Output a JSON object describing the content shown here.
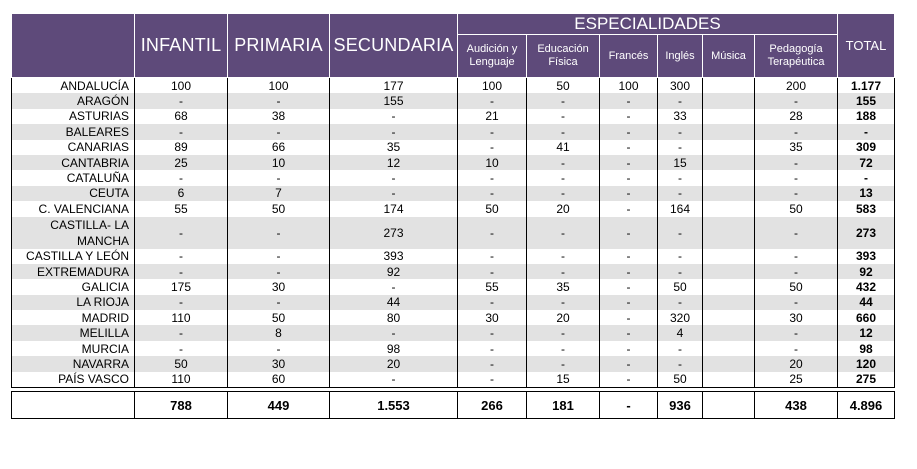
{
  "headers": {
    "region": "",
    "infantil": "INFANTIL",
    "primaria": "PRIMARIA",
    "secundaria": "SECUNDARIA",
    "especialidades": "ESPECIALIDADES",
    "total": "TOTAL",
    "sub": [
      "Audición y Lenguaje",
      "Educación Física",
      "Francés",
      "Inglés",
      "Música",
      "Pedagogía Terapéutica"
    ]
  },
  "rows": [
    {
      "name": "ANDALUCÍA",
      "cells": [
        "100",
        "100",
        "177",
        "100",
        "50",
        "100",
        "300",
        "",
        "200",
        "1.177"
      ]
    },
    {
      "name": "ARAGÓN",
      "cells": [
        "-",
        "-",
        "155",
        "-",
        "-",
        "-",
        "-",
        "",
        "-",
        "155"
      ]
    },
    {
      "name": "ASTURIAS",
      "cells": [
        "68",
        "38",
        "-",
        "21",
        "-",
        "-",
        "33",
        "",
        "28",
        "188"
      ]
    },
    {
      "name": "BALEARES",
      "cells": [
        "-",
        "-",
        "-",
        "-",
        "-",
        "-",
        "-",
        "",
        "-",
        "-"
      ]
    },
    {
      "name": "CANARIAS",
      "cells": [
        "89",
        "66",
        "35",
        "-",
        "41",
        "-",
        "-",
        "",
        "35",
        "309"
      ]
    },
    {
      "name": "CANTABRIA",
      "cells": [
        "25",
        "10",
        "12",
        "10",
        "-",
        "-",
        "15",
        "",
        "-",
        "72"
      ]
    },
    {
      "name": "CATALUÑA",
      "cells": [
        "-",
        "-",
        "-",
        "-",
        "-",
        "-",
        "-",
        "",
        "-",
        "-"
      ]
    },
    {
      "name": "CEUTA",
      "cells": [
        "6",
        "7",
        "-",
        "-",
        "-",
        "-",
        "-",
        "",
        "-",
        "13"
      ]
    },
    {
      "name": "C. VALENCIANA",
      "cells": [
        "55",
        "50",
        "174",
        "50",
        "20",
        "-",
        "164",
        "",
        "50",
        "583"
      ]
    },
    {
      "name": "CASTILLA- LA MANCHA",
      "cells": [
        "-",
        "-",
        "273",
        "-",
        "-",
        "-",
        "-",
        "",
        "-",
        "273"
      ]
    },
    {
      "name": "CASTILLA Y LEÓN",
      "cells": [
        "-",
        "-",
        "393",
        "-",
        "-",
        "-",
        "-",
        "",
        "-",
        "393"
      ]
    },
    {
      "name": "EXTREMADURA",
      "cells": [
        "-",
        "-",
        "92",
        "-",
        "-",
        "-",
        "-",
        "",
        "-",
        "92"
      ]
    },
    {
      "name": "GALICIA",
      "cells": [
        "175",
        "30",
        "-",
        "55",
        "35",
        "-",
        "50",
        "",
        "50",
        "432"
      ]
    },
    {
      "name": "LA RIOJA",
      "cells": [
        "-",
        "-",
        "44",
        "-",
        "-",
        "-",
        "-",
        "",
        "-",
        "44"
      ]
    },
    {
      "name": "MADRID",
      "cells": [
        "110",
        "50",
        "80",
        "30",
        "20",
        "-",
        "320",
        "",
        "30",
        "660"
      ]
    },
    {
      "name": "MELILLA",
      "cells": [
        "-",
        "8",
        "-",
        "-",
        "-",
        "-",
        "4",
        "",
        "-",
        "12"
      ]
    },
    {
      "name": "MURCIA",
      "cells": [
        "-",
        "-",
        "98",
        "-",
        "-",
        "-",
        "-",
        "",
        "-",
        "98"
      ]
    },
    {
      "name": "NAVARRA",
      "cells": [
        "50",
        "30",
        "20",
        "-",
        "-",
        "-",
        "-",
        "",
        "20",
        "120"
      ]
    },
    {
      "name": "PAÍS VASCO",
      "cells": [
        "110",
        "60",
        "-",
        "-",
        "15",
        "-",
        "50",
        "",
        "25",
        "275"
      ]
    }
  ],
  "totals": [
    "788",
    "449",
    "1.553",
    "266",
    "181",
    "-",
    "936",
    "",
    "438",
    "4.896"
  ]
}
